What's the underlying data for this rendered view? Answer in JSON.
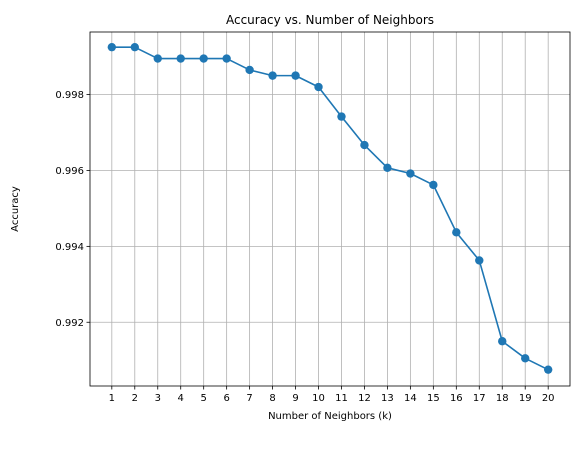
{
  "chart_data": {
    "type": "line",
    "title": "Accuracy vs. Number of Neighbors",
    "xlabel": "Number of Neighbors (k)",
    "ylabel": "Accuracy",
    "x": [
      1,
      2,
      3,
      4,
      5,
      6,
      7,
      8,
      9,
      10,
      11,
      12,
      13,
      14,
      15,
      16,
      17,
      18,
      19,
      20
    ],
    "xtick_labels": [
      "1",
      "2",
      "3",
      "4",
      "5",
      "6",
      "7",
      "8",
      "9",
      "10",
      "11",
      "12",
      "13",
      "14",
      "15",
      "16",
      "17",
      "18",
      "19",
      "20"
    ],
    "ytick_values": [
      0.992,
      0.994,
      0.996,
      0.998
    ],
    "ytick_labels": [
      "0.992",
      "0.994",
      "0.996",
      "0.998"
    ],
    "ylim": [
      0.99032,
      0.99965
    ],
    "xlim": [
      0.05,
      20.95
    ],
    "grid": true,
    "series": [
      {
        "name": "Accuracy",
        "color": "#1f77b4",
        "marker": "circle",
        "values": [
          0.99925,
          0.99925,
          0.99895,
          0.99895,
          0.99895,
          0.99895,
          0.99865,
          0.9985,
          0.9985,
          0.9982,
          0.99742,
          0.99667,
          0.99607,
          0.99592,
          0.99562,
          0.99437,
          0.99363,
          0.9915,
          0.99105,
          0.99075
        ]
      }
    ]
  }
}
